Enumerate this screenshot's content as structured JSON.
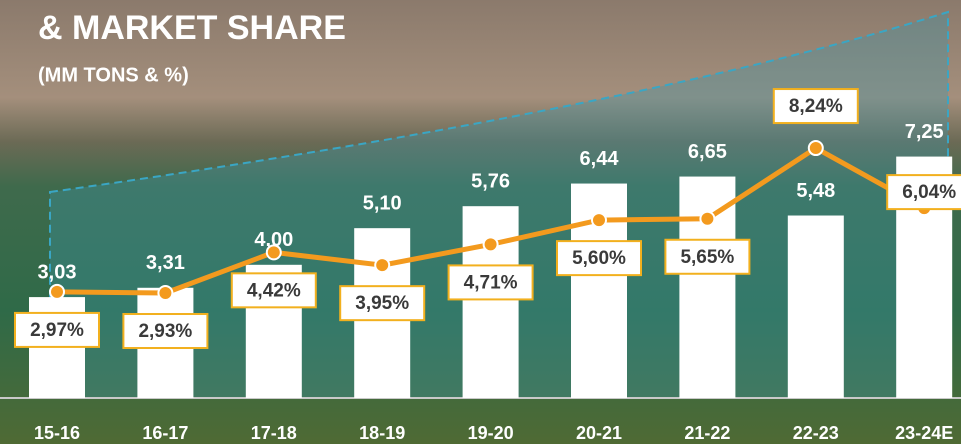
{
  "chart_data": {
    "type": "bar-line",
    "title": "& MARKET SHARE",
    "subtitle": "(MM TONS & %)",
    "categories": [
      "15-16",
      "16-17",
      "17-18",
      "18-19",
      "19-20",
      "20-21",
      "21-22",
      "22-23",
      "23-24E"
    ],
    "bars": {
      "color": "#ffffff",
      "values": [
        3.03,
        3.31,
        4.0,
        5.1,
        5.76,
        6.44,
        6.65,
        5.48,
        7.25
      ],
      "value_labels": [
        "3,03",
        "3,31",
        "4,00",
        "5,10",
        "5,76",
        "6,44",
        "6,65",
        "5,48",
        "7,25"
      ]
    },
    "line": {
      "color": "#f39a1e",
      "values": [
        2.97,
        2.93,
        4.42,
        3.95,
        4.71,
        5.6,
        5.65,
        8.24,
        6.04
      ],
      "value_labels": [
        "2,97%",
        "2,93%",
        "4,42%",
        "3,95%",
        "4,71%",
        "5,60%",
        "5,65%",
        "8,24%",
        "6,04%"
      ]
    }
  }
}
